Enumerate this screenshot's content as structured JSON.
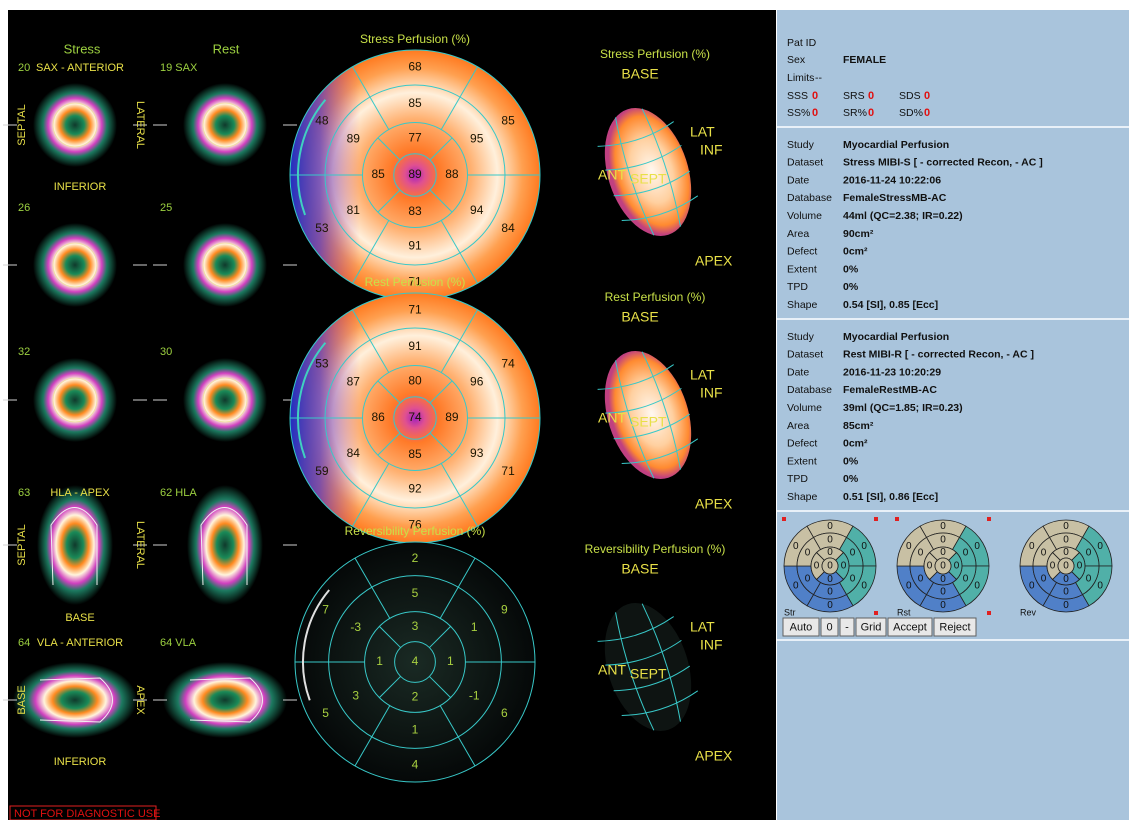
{
  "slices": {
    "stress_header": "Stress",
    "rest_header": "Rest",
    "rows": [
      {
        "stress_label": "20",
        "stress_title": "SAX - ANTERIOR",
        "rest_label": "19 SAX",
        "left": "SEPTAL",
        "right": "LATERAL",
        "bottom": "INFERIOR"
      },
      {
        "stress_label": "26",
        "rest_label": "25"
      },
      {
        "stress_label": "32",
        "rest_label": "30"
      },
      {
        "stress_label": "63",
        "stress_title": "HLA - APEX",
        "rest_label": "62 HLA",
        "left": "SEPTAL",
        "right": "LATERAL",
        "bottom": "BASE"
      },
      {
        "stress_label": "64",
        "stress_title": "VLA - ANTERIOR",
        "rest_label": "64 VLA",
        "left": "BASE",
        "right": "APEX",
        "bottom": "INFERIOR"
      }
    ]
  },
  "polar_maps": [
    {
      "title": "Stress Perfusion (%)",
      "basal": [
        68,
        85,
        84,
        71,
        53,
        48
      ],
      "mid": [
        85,
        95,
        94,
        91,
        81,
        89
      ],
      "apical": [
        77,
        88,
        83,
        85
      ],
      "apex": 89
    },
    {
      "title": "Rest Perfusion (%)",
      "basal": [
        71,
        74,
        71,
        76,
        59,
        53
      ],
      "mid": [
        91,
        96,
        93,
        92,
        84,
        87
      ],
      "apical": [
        80,
        89,
        85,
        86
      ],
      "apex": 74
    },
    {
      "title": "Reversibility Perfusion (%)",
      "basal": [
        2,
        9,
        6,
        4,
        5,
        7
      ],
      "mid": [
        5,
        1,
        -1,
        1,
        3,
        -3
      ],
      "apical": [
        3,
        1,
        2,
        1
      ],
      "apex": 4
    }
  ],
  "views_3d": [
    {
      "title": "Stress Perfusion (%)",
      "base": "BASE",
      "lat": "LAT",
      "inf": "INF",
      "ant": "ANT",
      "sept": "SEPT",
      "apex": "APEX"
    },
    {
      "title": "Rest Perfusion (%)",
      "base": "BASE",
      "lat": "LAT",
      "inf": "INF",
      "ant": "ANT",
      "sept": "SEPT",
      "apex": "APEX"
    },
    {
      "title": "Reversibility Perfusion (%)",
      "base": "BASE",
      "lat": "LAT",
      "inf": "INF",
      "ant": "ANT",
      "sept": "SEPT",
      "apex": "APEX"
    }
  ],
  "footer": "NOT FOR DIAGNOSTIC USE",
  "patient": {
    "pat_id_label": "Pat ID",
    "sex_label": "Sex",
    "sex": "FEMALE",
    "limits_label": "Limits",
    "limits": "--",
    "scores": [
      {
        "label": "SSS",
        "value": 0
      },
      {
        "label": "SRS",
        "value": 0
      },
      {
        "label": "SDS",
        "value": 0
      },
      {
        "label": "SS%",
        "value": 0
      },
      {
        "label": "SR%",
        "value": 0
      },
      {
        "label": "SD%",
        "value": 0
      }
    ]
  },
  "datasets": [
    {
      "rows": [
        [
          "Study",
          "Myocardial Perfusion"
        ],
        [
          "Dataset",
          "Stress MIBI-S [ - corrected Recon,  - AC ]"
        ],
        [
          "Date",
          "2016-11-24 10:22:06"
        ],
        [
          "Database",
          "FemaleStressMB-AC"
        ],
        [
          "Volume",
          "44ml (QC=2.38; IR=0.22)"
        ],
        [
          "Area",
          "90cm²"
        ],
        [
          "Defect",
          "0cm²"
        ],
        [
          "Extent",
          "0%"
        ],
        [
          "TPD",
          "0%"
        ],
        [
          "Shape",
          "0.54 [SI], 0.85 [Ecc]"
        ]
      ]
    },
    {
      "rows": [
        [
          "Study",
          "Myocardial Perfusion"
        ],
        [
          "Dataset",
          "Rest MIBI-R [ - corrected Recon,  - AC ]"
        ],
        [
          "Date",
          "2016-11-23 10:20:29"
        ],
        [
          "Database",
          "FemaleRestMB-AC"
        ],
        [
          "Volume",
          "39ml (QC=1.85; IR=0.23)"
        ],
        [
          "Area",
          "85cm²"
        ],
        [
          "Defect",
          "0cm²"
        ],
        [
          "Extent",
          "0%"
        ],
        [
          "TPD",
          "0%"
        ],
        [
          "Shape",
          "0.51 [SI], 0.86 [Ecc]"
        ]
      ]
    }
  ],
  "summary": {
    "maps": [
      {
        "label": "Str",
        "values": [
          0,
          0,
          0,
          0,
          0,
          0,
          0,
          0,
          0,
          0,
          0,
          0,
          0,
          0,
          0,
          0,
          0
        ]
      },
      {
        "label": "Rst",
        "values": [
          0,
          0,
          0,
          0,
          0,
          0,
          0,
          0,
          0,
          0,
          0,
          0,
          0,
          0,
          0,
          0,
          0
        ]
      },
      {
        "label": "Rev",
        "values": [
          0,
          0,
          0,
          0,
          0,
          0,
          0,
          0,
          0,
          0,
          0,
          0,
          0,
          0,
          0,
          0,
          0
        ]
      }
    ],
    "buttons": [
      "Auto",
      "0",
      "-",
      "Grid",
      "Accept",
      "Reject"
    ]
  }
}
